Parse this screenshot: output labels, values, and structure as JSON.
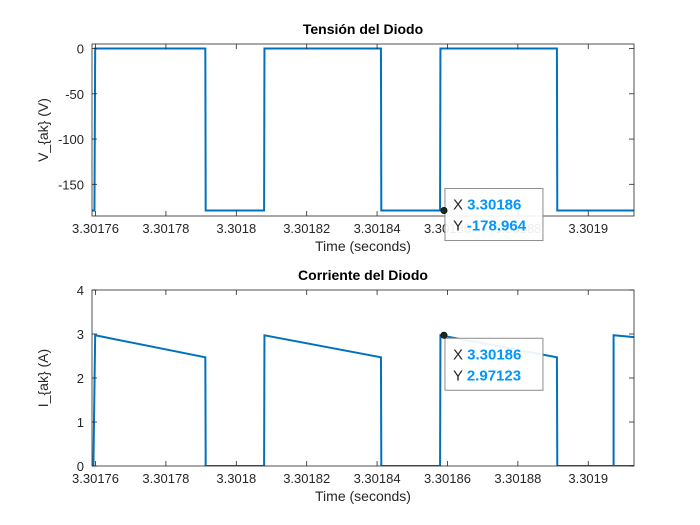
{
  "colors": {
    "line": "#0072BD",
    "datatip_value": "#0096FF",
    "axes": "#262626",
    "grid": "#DFDFDF"
  },
  "chart_data": [
    {
      "type": "line",
      "title": "Tensión del Diodo",
      "xlabel": "Time (seconds)",
      "ylabel": "V_{ak} (V)",
      "xlim": [
        3.301759,
        3.301913
      ],
      "ylim": [
        -185,
        5
      ],
      "xticks": [
        3.30176,
        3.30178,
        3.3018,
        3.30182,
        3.30184,
        3.30186,
        3.30188,
        3.3019
      ],
      "xtick_labels": [
        "3.30176",
        "3.30178",
        "3.3018",
        "3.30182",
        "3.30184",
        "3.30186",
        "3.30188",
        "3.3019"
      ],
      "yticks": [
        0,
        -50,
        -100,
        -150
      ],
      "ytick_labels": [
        "0",
        "-50",
        "-100",
        "-150"
      ],
      "grid": false,
      "series": [
        {
          "x": [
            3.301759,
            3.3017597,
            3.3017599,
            3.3017912,
            3.3017913,
            3.3018079,
            3.301808,
            3.3018411,
            3.3018412,
            3.3018579,
            3.301858,
            3.3018911,
            3.3018912,
            3.301913
          ],
          "y": [
            -178.964,
            -178.964,
            0,
            0,
            -178.964,
            -178.964,
            0,
            0,
            -178.964,
            -178.964,
            0,
            0,
            -178.964,
            -178.964
          ]
        }
      ],
      "datatip": {
        "x": 3.301859,
        "y": -178.964,
        "x_label": "X",
        "x_text": "3.30186",
        "y_label": "Y",
        "y_text": "-178.964"
      }
    },
    {
      "type": "line",
      "title": "Corriente del Diodo",
      "xlabel": "Time (seconds)",
      "ylabel": "I_{ak} (A)",
      "xlim": [
        3.301759,
        3.301913
      ],
      "ylim": [
        0,
        4
      ],
      "xticks": [
        3.30176,
        3.30178,
        3.3018,
        3.30182,
        3.30184,
        3.30186,
        3.30188,
        3.3019
      ],
      "xtick_labels": [
        "3.30176",
        "3.30178",
        "3.3018",
        "3.30182",
        "3.30184",
        "3.30186",
        "3.30188",
        "3.3019"
      ],
      "yticks": [
        0,
        1,
        2,
        3,
        4
      ],
      "ytick_labels": [
        "0",
        "1",
        "2",
        "3",
        "4"
      ],
      "grid": false,
      "series": [
        {
          "x": [
            3.301759,
            3.3017594,
            3.3017599,
            3.3017912,
            3.3017913,
            3.3018079,
            3.301808,
            3.3018411,
            3.3018412,
            3.3018579,
            3.301858,
            3.3018911,
            3.3018912,
            3.301913
          ],
          "y": [
            0,
            0,
            2.97123,
            2.47,
            0,
            0,
            2.97123,
            2.47,
            0,
            0,
            2.97123,
            2.47,
            0,
            0
          ]
        },
        {
          "x": [
            3.3019072,
            3.3019072,
            3.301913
          ],
          "y": [
            0,
            2.97123,
            2.93
          ]
        }
      ],
      "datatip": {
        "x": 3.301859,
        "y": 2.97123,
        "x_label": "X",
        "x_text": "3.30186",
        "y_label": "Y",
        "y_text": "2.97123"
      }
    }
  ]
}
